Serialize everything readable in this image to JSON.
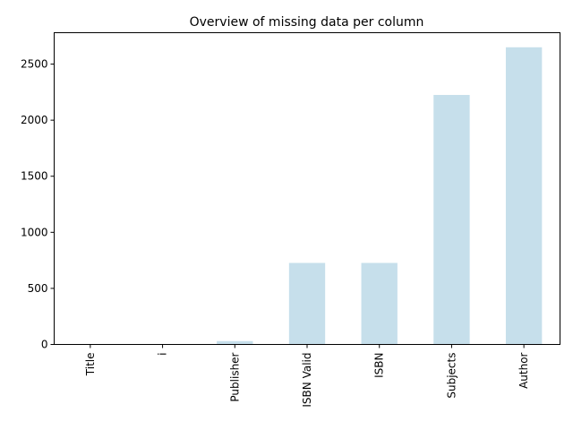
{
  "chart_data": {
    "type": "bar",
    "title": "Overview of missing data per column",
    "xlabel": "",
    "ylabel": "",
    "categories": [
      "Title",
      "i",
      "Publisher",
      "ISBN Valid",
      "ISBN",
      "Subjects",
      "Author"
    ],
    "values": [
      0,
      0,
      30,
      727,
      727,
      2225,
      2650
    ],
    "ylim": [
      0,
      2780
    ],
    "yticks": [
      0,
      500,
      1000,
      1500,
      2000,
      2500
    ],
    "grid": false,
    "legend": "none",
    "colors": {
      "bar": "#c6dfeb",
      "axis": "#000000",
      "text": "#000000"
    }
  }
}
